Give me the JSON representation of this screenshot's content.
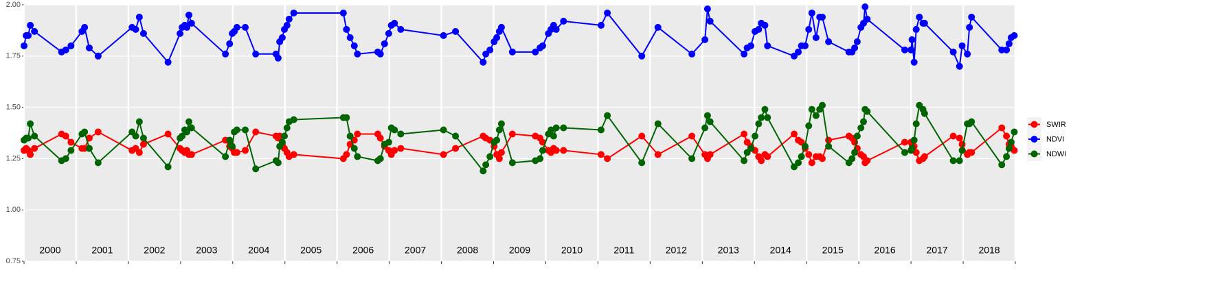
{
  "chart_data": {
    "type": "line",
    "x": [
      2000.0,
      2000.04,
      2000.08,
      2000.12,
      2000.2,
      2000.72,
      2000.8,
      2000.9,
      2001.11,
      2001.16,
      2001.25,
      2001.42,
      2002.07,
      2002.14,
      2002.21,
      2002.29,
      2002.76,
      2002.99,
      2003.03,
      2003.08,
      2003.12,
      2003.16,
      2003.21,
      2003.86,
      2003.94,
      2003.99,
      2004.03,
      2004.08,
      2004.24,
      2004.44,
      2004.83,
      2004.87,
      2004.9,
      2004.95,
      2004.99,
      2005.04,
      2005.08,
      2005.17,
      2006.12,
      2006.18,
      2006.25,
      2006.33,
      2006.39,
      2006.78,
      2006.83,
      2006.91,
      2006.99,
      2007.04,
      2007.1,
      2007.22,
      2008.04,
      2008.27,
      2008.8,
      2008.85,
      2008.93,
      2009.01,
      2009.06,
      2009.11,
      2009.15,
      2009.36,
      2009.8,
      2009.89,
      2009.94,
      2010.05,
      2010.1,
      2010.15,
      2010.2,
      2010.34,
      2011.06,
      2011.18,
      2011.84,
      2012.15,
      2012.8,
      2013.05,
      2013.1,
      2013.15,
      2013.8,
      2013.86,
      2013.93,
      2014.01,
      2014.08,
      2014.13,
      2014.2,
      2014.25,
      2014.76,
      2014.84,
      2014.9,
      2014.97,
      2015.04,
      2015.1,
      2015.18,
      2015.25,
      2015.3,
      2015.42,
      2015.81,
      2015.87,
      2015.92,
      2015.97,
      2016.04,
      2016.09,
      2016.12,
      2016.16,
      2016.88,
      2017.0,
      2017.02,
      2017.06,
      2017.1,
      2017.16,
      2017.23,
      2017.26,
      2017.81,
      2017.93,
      2017.98,
      2018.08,
      2018.12,
      2018.16,
      2018.74,
      2018.83,
      2018.88,
      2018.92,
      2018.98
    ],
    "series": [
      {
        "name": "SWIR",
        "color": "#ff0000",
        "values": [
          1.29,
          1.3,
          1.29,
          1.27,
          1.3,
          1.37,
          1.36,
          1.33,
          1.3,
          1.3,
          1.35,
          1.38,
          1.29,
          1.3,
          1.28,
          1.32,
          1.37,
          1.3,
          1.29,
          1.28,
          1.29,
          1.27,
          1.27,
          1.34,
          1.31,
          1.3,
          1.28,
          1.28,
          1.29,
          1.38,
          1.36,
          1.35,
          1.36,
          1.32,
          1.3,
          1.28,
          1.26,
          1.27,
          1.25,
          1.27,
          1.32,
          1.34,
          1.37,
          1.37,
          1.35,
          1.31,
          1.29,
          1.27,
          1.29,
          1.3,
          1.27,
          1.3,
          1.36,
          1.35,
          1.34,
          1.31,
          1.27,
          1.25,
          1.28,
          1.37,
          1.36,
          1.35,
          1.33,
          1.29,
          1.28,
          1.3,
          1.29,
          1.29,
          1.27,
          1.25,
          1.36,
          1.27,
          1.36,
          1.27,
          1.25,
          1.27,
          1.37,
          1.33,
          1.31,
          1.29,
          1.26,
          1.24,
          1.27,
          1.26,
          1.37,
          1.34,
          1.33,
          1.3,
          1.27,
          1.23,
          1.26,
          1.26,
          1.25,
          1.34,
          1.36,
          1.35,
          1.33,
          1.3,
          1.27,
          1.26,
          1.23,
          1.24,
          1.33,
          1.33,
          1.32,
          1.31,
          1.28,
          1.24,
          1.25,
          1.26,
          1.36,
          1.35,
          1.32,
          1.27,
          1.28,
          1.28,
          1.4,
          1.36,
          1.32,
          1.31,
          1.29
        ]
      },
      {
        "name": "NDVI",
        "color": "#0000ff",
        "values": [
          1.8,
          1.85,
          1.85,
          1.9,
          1.87,
          1.77,
          1.78,
          1.8,
          1.87,
          1.89,
          1.79,
          1.75,
          1.89,
          1.88,
          1.94,
          1.86,
          1.72,
          1.86,
          1.89,
          1.9,
          1.89,
          1.95,
          1.91,
          1.76,
          1.81,
          1.86,
          1.87,
          1.89,
          1.89,
          1.76,
          1.76,
          1.74,
          1.82,
          1.84,
          1.88,
          1.9,
          1.93,
          1.96,
          1.96,
          1.88,
          1.84,
          1.8,
          1.76,
          1.77,
          1.76,
          1.81,
          1.86,
          1.9,
          1.91,
          1.88,
          1.85,
          1.87,
          1.72,
          1.76,
          1.78,
          1.82,
          1.84,
          1.87,
          1.89,
          1.77,
          1.77,
          1.79,
          1.8,
          1.86,
          1.88,
          1.9,
          1.88,
          1.92,
          1.9,
          1.96,
          1.75,
          1.89,
          1.76,
          1.83,
          1.98,
          1.92,
          1.76,
          1.79,
          1.8,
          1.87,
          1.88,
          1.91,
          1.9,
          1.8,
          1.75,
          1.77,
          1.8,
          1.8,
          1.88,
          1.96,
          1.84,
          1.94,
          1.94,
          1.82,
          1.77,
          1.77,
          1.79,
          1.82,
          1.89,
          1.91,
          1.99,
          1.93,
          1.78,
          1.78,
          1.83,
          1.72,
          1.88,
          1.94,
          1.91,
          1.91,
          1.77,
          1.7,
          1.8,
          1.76,
          1.89,
          1.94,
          1.78,
          1.78,
          1.81,
          1.84,
          1.85
        ]
      },
      {
        "name": "NDWI",
        "color": "#006400",
        "values": [
          1.34,
          1.35,
          1.35,
          1.42,
          1.36,
          1.24,
          1.25,
          1.29,
          1.37,
          1.38,
          1.3,
          1.23,
          1.38,
          1.36,
          1.43,
          1.35,
          1.21,
          1.35,
          1.36,
          1.39,
          1.38,
          1.43,
          1.4,
          1.26,
          1.34,
          1.31,
          1.38,
          1.39,
          1.39,
          1.2,
          1.24,
          1.23,
          1.31,
          1.33,
          1.36,
          1.4,
          1.43,
          1.44,
          1.45,
          1.45,
          1.36,
          1.3,
          1.26,
          1.24,
          1.25,
          1.32,
          1.33,
          1.4,
          1.39,
          1.37,
          1.39,
          1.36,
          1.19,
          1.22,
          1.26,
          1.33,
          1.34,
          1.39,
          1.42,
          1.23,
          1.24,
          1.25,
          1.29,
          1.37,
          1.39,
          1.36,
          1.4,
          1.4,
          1.39,
          1.46,
          1.23,
          1.42,
          1.25,
          1.4,
          1.46,
          1.43,
          1.24,
          1.28,
          1.3,
          1.36,
          1.42,
          1.45,
          1.49,
          1.45,
          1.21,
          1.23,
          1.26,
          1.31,
          1.41,
          1.49,
          1.46,
          1.49,
          1.51,
          1.31,
          1.23,
          1.25,
          1.28,
          1.36,
          1.4,
          1.43,
          1.49,
          1.48,
          1.28,
          1.29,
          1.3,
          1.34,
          1.42,
          1.51,
          1.49,
          1.47,
          1.24,
          1.24,
          1.29,
          1.42,
          1.42,
          1.43,
          1.22,
          1.26,
          1.3,
          1.33,
          1.38
        ]
      }
    ],
    "xlim": [
      2000,
      2019
    ],
    "xticks": [
      2000,
      2001,
      2002,
      2003,
      2004,
      2005,
      2006,
      2007,
      2008,
      2009,
      2010,
      2011,
      2012,
      2013,
      2014,
      2015,
      2016,
      2017,
      2018,
      2019
    ],
    "year_labels": [
      2000,
      2001,
      2002,
      2003,
      2004,
      2005,
      2006,
      2007,
      2008,
      2009,
      2010,
      2011,
      2012,
      2013,
      2014,
      2015,
      2016,
      2017,
      2018
    ],
    "ylim": [
      0.75,
      2.0
    ],
    "yticks": [
      0.75,
      {
        "value": 1.0,
        "label": "1.00"
      },
      1.25,
      {
        "value": 1.5,
        "label": "1.50"
      },
      1.75,
      {
        "value": 2.0,
        "label": "2.00"
      }
    ],
    "grid": true,
    "legend": "right"
  }
}
